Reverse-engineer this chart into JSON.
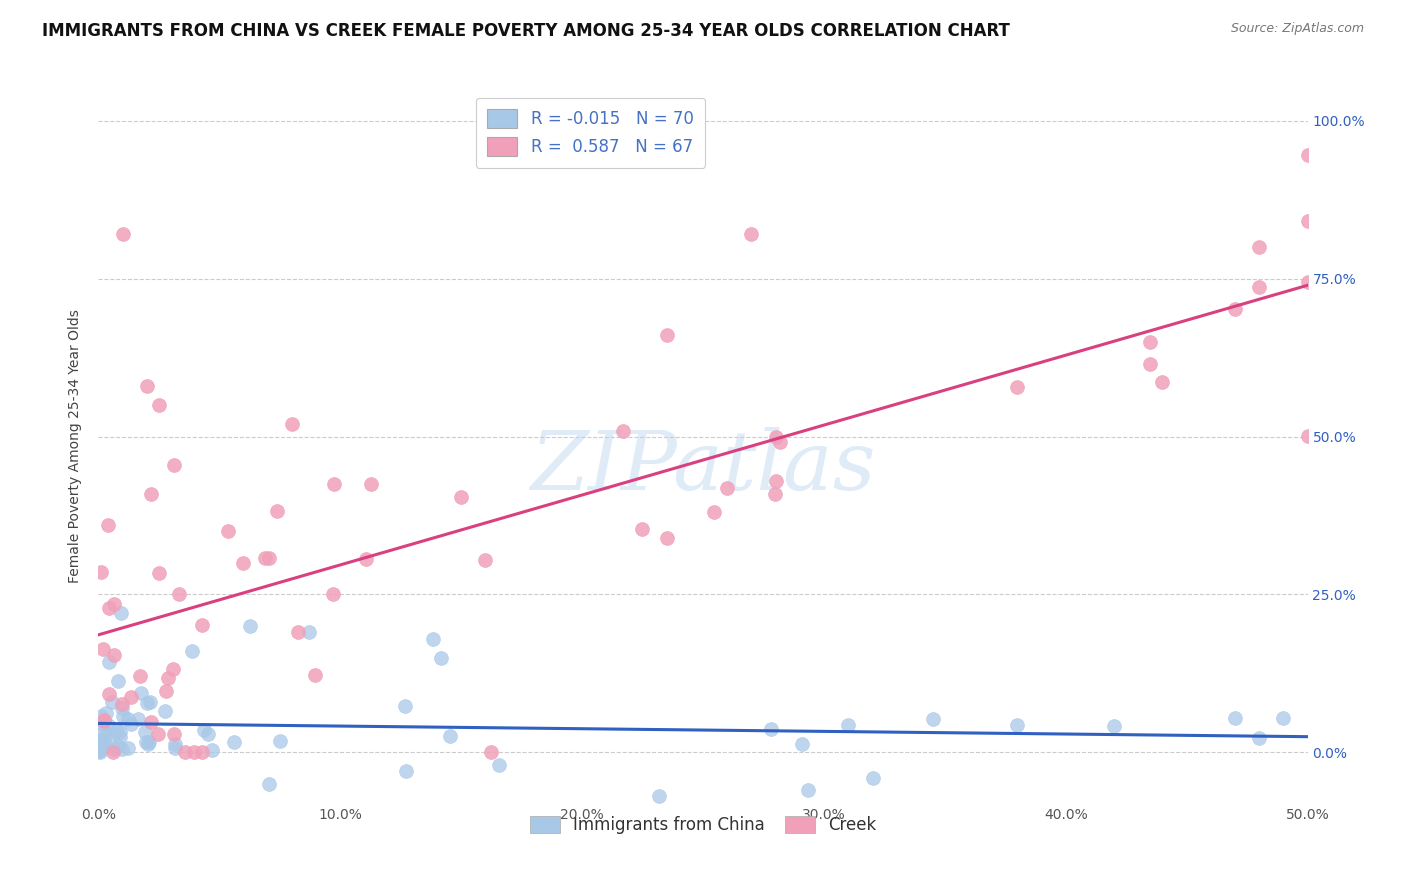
{
  "title": "IMMIGRANTS FROM CHINA VS CREEK FEMALE POVERTY AMONG 25-34 YEAR OLDS CORRELATION CHART",
  "source": "Source: ZipAtlas.com",
  "ylabel": "Female Poverty Among 25-34 Year Olds",
  "xlim": [
    0.0,
    0.5
  ],
  "ylim": [
    -0.08,
    1.05
  ],
  "china_color": "#a8c8e8",
  "china_line_color": "#3060c0",
  "creek_color": "#f0a0b8",
  "creek_line_color": "#d84080",
  "china_R": "-0.015",
  "china_N": "70",
  "creek_R": "0.587",
  "creek_N": "67",
  "legend_label_china": "Immigrants from China",
  "legend_label_creek": "Creek",
  "watermark": "ZIPatlas",
  "background_color": "#ffffff",
  "grid_color": "#cccccc",
  "title_fontsize": 12,
  "label_fontsize": 10,
  "tick_fontsize": 10,
  "legend_fontsize": 12,
  "legend_text_color": "#4472c4"
}
